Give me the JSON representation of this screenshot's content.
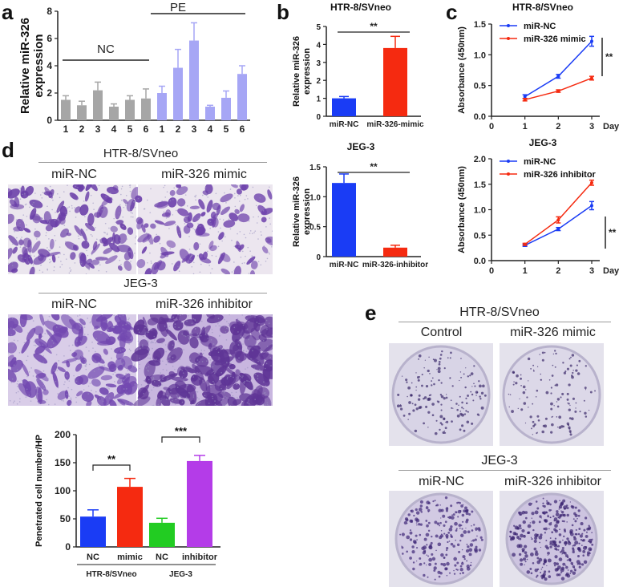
{
  "panels": {
    "a": "a",
    "b": "b",
    "c": "c",
    "d": "d",
    "e": "e"
  },
  "colors": {
    "gray": "#a6a6a6",
    "lavender": "#a6a6f5",
    "blue": "#1a3cf5",
    "red": "#f52a10",
    "green": "#22cc22",
    "purple": "#b43ce8",
    "bkg": "#ffffff"
  },
  "chart_data": [
    {
      "id": "a",
      "type": "bar",
      "ylabel": "Relative miR-326\nexpression",
      "ylim": [
        0,
        8
      ],
      "yticks": [
        0,
        2,
        4,
        6,
        8
      ],
      "categories": [
        "1",
        "2",
        "3",
        "4",
        "5",
        "6",
        "1",
        "2",
        "3",
        "4",
        "5",
        "6"
      ],
      "groups": [
        {
          "label": "NC",
          "range": [
            0,
            5
          ],
          "color": "#a6a6a6"
        },
        {
          "label": "PE",
          "range": [
            6,
            11
          ],
          "color": "#a6a6f5"
        }
      ],
      "values": [
        1.5,
        1.1,
        2.2,
        1.0,
        1.5,
        1.6,
        2.0,
        3.85,
        5.85,
        1.0,
        1.65,
        3.4
      ],
      "errors": [
        0.3,
        0.3,
        0.6,
        0.2,
        0.3,
        0.7,
        0.5,
        1.35,
        1.3,
        0.1,
        0.5,
        0.6
      ]
    },
    {
      "id": "b1",
      "type": "bar",
      "title": "HTR-8/SVneo",
      "ylabel": "Relative miR-326\nexpression",
      "ylim": [
        0,
        5
      ],
      "yticks": [
        0,
        1,
        2,
        3,
        4,
        5
      ],
      "categories": [
        "miR-NC",
        "miR-326-mimic"
      ],
      "values": [
        1.0,
        3.8
      ],
      "errors": [
        0.1,
        0.65
      ],
      "colors": [
        "#1a3cf5",
        "#f52a10"
      ],
      "sig": "**"
    },
    {
      "id": "b2",
      "type": "bar",
      "title": "JEG-3",
      "ylabel": "Relative miR-326\nexpression",
      "ylim": [
        0,
        1.5
      ],
      "yticks": [
        "0",
        "0.5",
        "1.0",
        "1.5"
      ],
      "categories": [
        "miR-NC",
        "miR-326-inhibitor"
      ],
      "values": [
        1.23,
        0.15
      ],
      "errors": [
        0.15,
        0.04
      ],
      "colors": [
        "#1a3cf5",
        "#f52a10"
      ],
      "sig": "**"
    },
    {
      "id": "c1",
      "type": "line",
      "title": "HTR-8/SVneo",
      "ylabel": "Absorbance (450nm)",
      "xlabel": "Day",
      "xlim": [
        0,
        3
      ],
      "xticks": [
        "0",
        "1",
        "2",
        "3"
      ],
      "ylim": [
        0,
        1.5
      ],
      "yticks": [
        "0.0",
        "0.5",
        "1.0",
        "1.5"
      ],
      "x": [
        1,
        2,
        3
      ],
      "series": [
        {
          "name": "miR-NC",
          "values": [
            0.32,
            0.65,
            1.22
          ],
          "errors": [
            0.03,
            0.03,
            0.08
          ],
          "color": "#1a3cf5"
        },
        {
          "name": "miR-326 mimic",
          "values": [
            0.27,
            0.41,
            0.62
          ],
          "errors": [
            0.02,
            0.02,
            0.03
          ],
          "color": "#f52a10"
        }
      ],
      "sig": "**"
    },
    {
      "id": "c2",
      "type": "line",
      "title": "JEG-3",
      "ylabel": "Absorbance (450nm)",
      "xlabel": "Day",
      "xlim": [
        0,
        3
      ],
      "xticks": [
        "0",
        "1",
        "2",
        "3"
      ],
      "ylim": [
        0,
        2.0
      ],
      "yticks": [
        "0.0",
        "0.5",
        "1.0",
        "1.5",
        "2.0"
      ],
      "x": [
        1,
        2,
        3
      ],
      "series": [
        {
          "name": "miR-NC",
          "values": [
            0.3,
            0.62,
            1.08
          ],
          "errors": [
            0.02,
            0.03,
            0.08
          ],
          "color": "#1a3cf5"
        },
        {
          "name": "miR-326 inhibitor",
          "values": [
            0.32,
            0.8,
            1.53
          ],
          "errors": [
            0.02,
            0.06,
            0.05
          ],
          "color": "#f52a10"
        }
      ],
      "sig": "**"
    },
    {
      "id": "d",
      "type": "bar",
      "ylabel": "Penetrated cell number/HP",
      "ylim": [
        0,
        200
      ],
      "yticks": [
        0,
        50,
        100,
        150,
        200
      ],
      "categories": [
        "NC",
        "mimic",
        "NC",
        "inhibitor"
      ],
      "values": [
        54,
        107,
        43,
        153
      ],
      "errors": [
        12,
        15,
        8,
        10
      ],
      "colors": [
        "#1a3cf5",
        "#f52a10",
        "#22cc22",
        "#b43ce8"
      ],
      "groups": [
        {
          "label": "HTR-8/SVneo",
          "range": [
            0,
            1
          ]
        },
        {
          "label": "JEG-3",
          "range": [
            2,
            3
          ]
        }
      ],
      "sigs": [
        {
          "between": [
            0,
            1
          ],
          "text": "**"
        },
        {
          "between": [
            2,
            3
          ],
          "text": "***"
        }
      ]
    }
  ],
  "images": {
    "d_top_title": "HTR-8/SVneo",
    "d_top_labels": [
      "miR-NC",
      "miR-326 mimic"
    ],
    "d_bot_title": "JEG-3",
    "d_bot_labels": [
      "miR-NC",
      "miR-326 inhibitor"
    ],
    "e_top_title": "HTR-8/SVneo",
    "e_top_labels": [
      "Control",
      "miR-326 mimic"
    ],
    "e_bot_title": "JEG-3",
    "e_bot_labels": [
      "miR-NC",
      "miR-326 inhibitor"
    ]
  }
}
